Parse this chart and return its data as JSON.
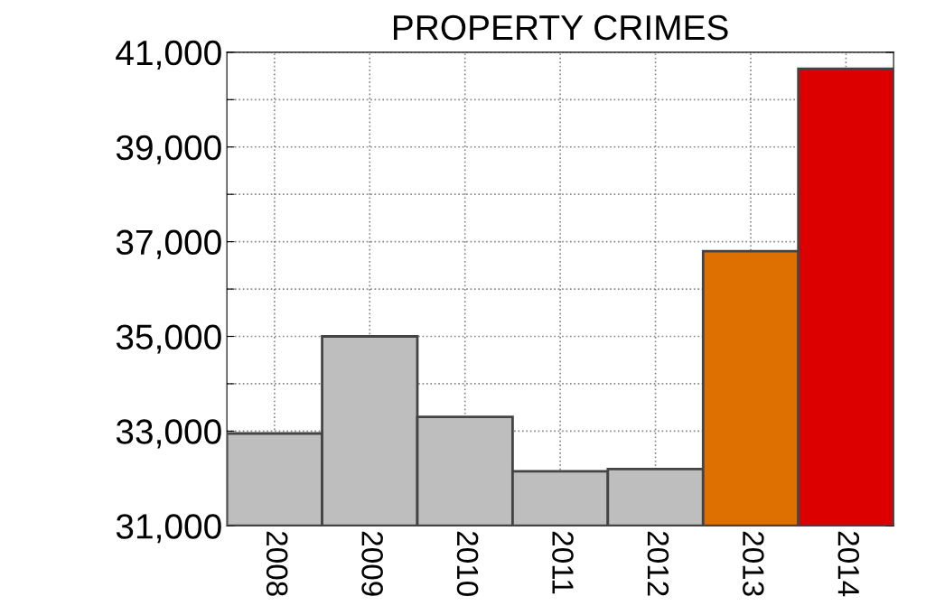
{
  "chart_data": {
    "type": "bar",
    "title": "PROPERTY CRIMES",
    "categories": [
      "2008",
      "2009",
      "2010",
      "2011",
      "2012",
      "2013",
      "2014"
    ],
    "values": [
      32950,
      35000,
      33300,
      32150,
      32200,
      36800,
      40650
    ],
    "colors": [
      "#bebebe",
      "#bebebe",
      "#bebebe",
      "#bebebe",
      "#bebebe",
      "#dd7000",
      "#dd0000"
    ],
    "ylim": [
      31000,
      41000
    ],
    "yticks": [
      {
        "value": 31000,
        "label": "31,000"
      },
      {
        "value": 32000,
        "label": null
      },
      {
        "value": 33000,
        "label": "33,000"
      },
      {
        "value": 34000,
        "label": null
      },
      {
        "value": 35000,
        "label": "35,000"
      },
      {
        "value": 36000,
        "label": null
      },
      {
        "value": 37000,
        "label": "37,000"
      },
      {
        "value": 38000,
        "label": null
      },
      {
        "value": 39000,
        "label": "39,000"
      },
      {
        "value": 40000,
        "label": null
      },
      {
        "value": 41000,
        "label": "41,000"
      }
    ],
    "grid": true
  }
}
